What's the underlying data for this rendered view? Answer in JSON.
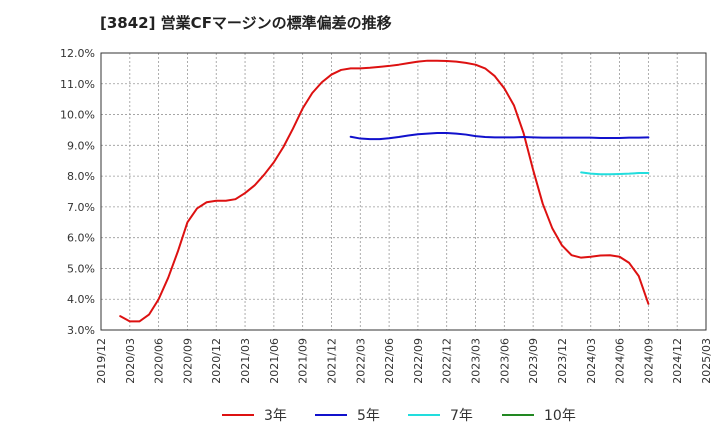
{
  "chart_data": {
    "type": "line",
    "title": "[3842]  営業CFマージンの標準偏差の推移",
    "xlabel": "",
    "ylabel": "",
    "ylim": [
      3.0,
      12.0
    ],
    "y_ticks": [
      "3.0%",
      "4.0%",
      "5.0%",
      "6.0%",
      "7.0%",
      "8.0%",
      "9.0%",
      "10.0%",
      "11.0%",
      "12.0%"
    ],
    "x_range": [
      "2019/12",
      "2025/03"
    ],
    "x_ticks": [
      "2019/12",
      "2020/03",
      "2020/06",
      "2020/09",
      "2020/12",
      "2021/03",
      "2021/06",
      "2021/09",
      "2021/12",
      "2022/03",
      "2022/06",
      "2022/09",
      "2022/12",
      "2023/03",
      "2023/06",
      "2023/09",
      "2023/12",
      "2024/03",
      "2024/06",
      "2024/09",
      "2024/12",
      "2025/03"
    ],
    "grid": true,
    "legend_position": "bottom",
    "series": [
      {
        "name": "3年",
        "color": "#dd1111",
        "points": [
          [
            "2020/02",
            3.45
          ],
          [
            "2020/03",
            3.28
          ],
          [
            "2020/04",
            3.28
          ],
          [
            "2020/05",
            3.5
          ],
          [
            "2020/06",
            4.0
          ],
          [
            "2020/07",
            4.7
          ],
          [
            "2020/08",
            5.55
          ],
          [
            "2020/09",
            6.5
          ],
          [
            "2020/10",
            6.95
          ],
          [
            "2020/11",
            7.15
          ],
          [
            "2020/12",
            7.2
          ],
          [
            "2021/01",
            7.2
          ],
          [
            "2021/02",
            7.25
          ],
          [
            "2021/03",
            7.45
          ],
          [
            "2021/04",
            7.7
          ],
          [
            "2021/05",
            8.05
          ],
          [
            "2021/06",
            8.45
          ],
          [
            "2021/07",
            8.95
          ],
          [
            "2021/08",
            9.55
          ],
          [
            "2021/09",
            10.2
          ],
          [
            "2021/10",
            10.7
          ],
          [
            "2021/11",
            11.05
          ],
          [
            "2021/12",
            11.3
          ],
          [
            "2022/01",
            11.45
          ],
          [
            "2022/02",
            11.5
          ],
          [
            "2022/03",
            11.5
          ],
          [
            "2022/04",
            11.52
          ],
          [
            "2022/05",
            11.55
          ],
          [
            "2022/06",
            11.58
          ],
          [
            "2022/07",
            11.62
          ],
          [
            "2022/08",
            11.67
          ],
          [
            "2022/09",
            11.72
          ],
          [
            "2022/10",
            11.75
          ],
          [
            "2022/11",
            11.75
          ],
          [
            "2022/12",
            11.74
          ],
          [
            "2023/01",
            11.72
          ],
          [
            "2023/02",
            11.68
          ],
          [
            "2023/03",
            11.62
          ],
          [
            "2023/04",
            11.5
          ],
          [
            "2023/05",
            11.25
          ],
          [
            "2023/06",
            10.85
          ],
          [
            "2023/07",
            10.3
          ],
          [
            "2023/08",
            9.4
          ],
          [
            "2023/09",
            8.2
          ],
          [
            "2023/10",
            7.1
          ],
          [
            "2023/11",
            6.3
          ],
          [
            "2023/12",
            5.75
          ],
          [
            "2024/01",
            5.43
          ],
          [
            "2024/02",
            5.35
          ],
          [
            "2024/03",
            5.38
          ],
          [
            "2024/04",
            5.42
          ],
          [
            "2024/05",
            5.43
          ],
          [
            "2024/06",
            5.38
          ],
          [
            "2024/07",
            5.18
          ],
          [
            "2024/08",
            4.75
          ],
          [
            "2024/09",
            3.85
          ]
        ]
      },
      {
        "name": "5年",
        "color": "#1111cc",
        "points": [
          [
            "2022/02",
            9.28
          ],
          [
            "2022/03",
            9.22
          ],
          [
            "2022/04",
            9.2
          ],
          [
            "2022/05",
            9.2
          ],
          [
            "2022/06",
            9.23
          ],
          [
            "2022/07",
            9.27
          ],
          [
            "2022/08",
            9.32
          ],
          [
            "2022/09",
            9.36
          ],
          [
            "2022/10",
            9.38
          ],
          [
            "2022/11",
            9.4
          ],
          [
            "2022/12",
            9.4
          ],
          [
            "2023/01",
            9.38
          ],
          [
            "2023/02",
            9.35
          ],
          [
            "2023/03",
            9.3
          ],
          [
            "2023/04",
            9.27
          ],
          [
            "2023/05",
            9.26
          ],
          [
            "2023/06",
            9.26
          ],
          [
            "2023/07",
            9.26
          ],
          [
            "2023/08",
            9.27
          ],
          [
            "2023/09",
            9.26
          ],
          [
            "2023/10",
            9.25
          ],
          [
            "2023/11",
            9.25
          ],
          [
            "2023/12",
            9.25
          ],
          [
            "2024/01",
            9.25
          ],
          [
            "2024/02",
            9.25
          ],
          [
            "2024/03",
            9.25
          ],
          [
            "2024/04",
            9.24
          ],
          [
            "2024/05",
            9.24
          ],
          [
            "2024/06",
            9.24
          ],
          [
            "2024/07",
            9.25
          ],
          [
            "2024/08",
            9.25
          ],
          [
            "2024/09",
            9.26
          ]
        ]
      },
      {
        "name": "7年",
        "color": "#22dddd",
        "points": [
          [
            "2024/02",
            8.12
          ],
          [
            "2024/03",
            8.08
          ],
          [
            "2024/04",
            8.06
          ],
          [
            "2024/05",
            8.06
          ],
          [
            "2024/06",
            8.07
          ],
          [
            "2024/07",
            8.08
          ],
          [
            "2024/08",
            8.1
          ],
          [
            "2024/09",
            8.1
          ]
        ]
      },
      {
        "name": "10年",
        "color": "#228822",
        "points": []
      }
    ]
  }
}
